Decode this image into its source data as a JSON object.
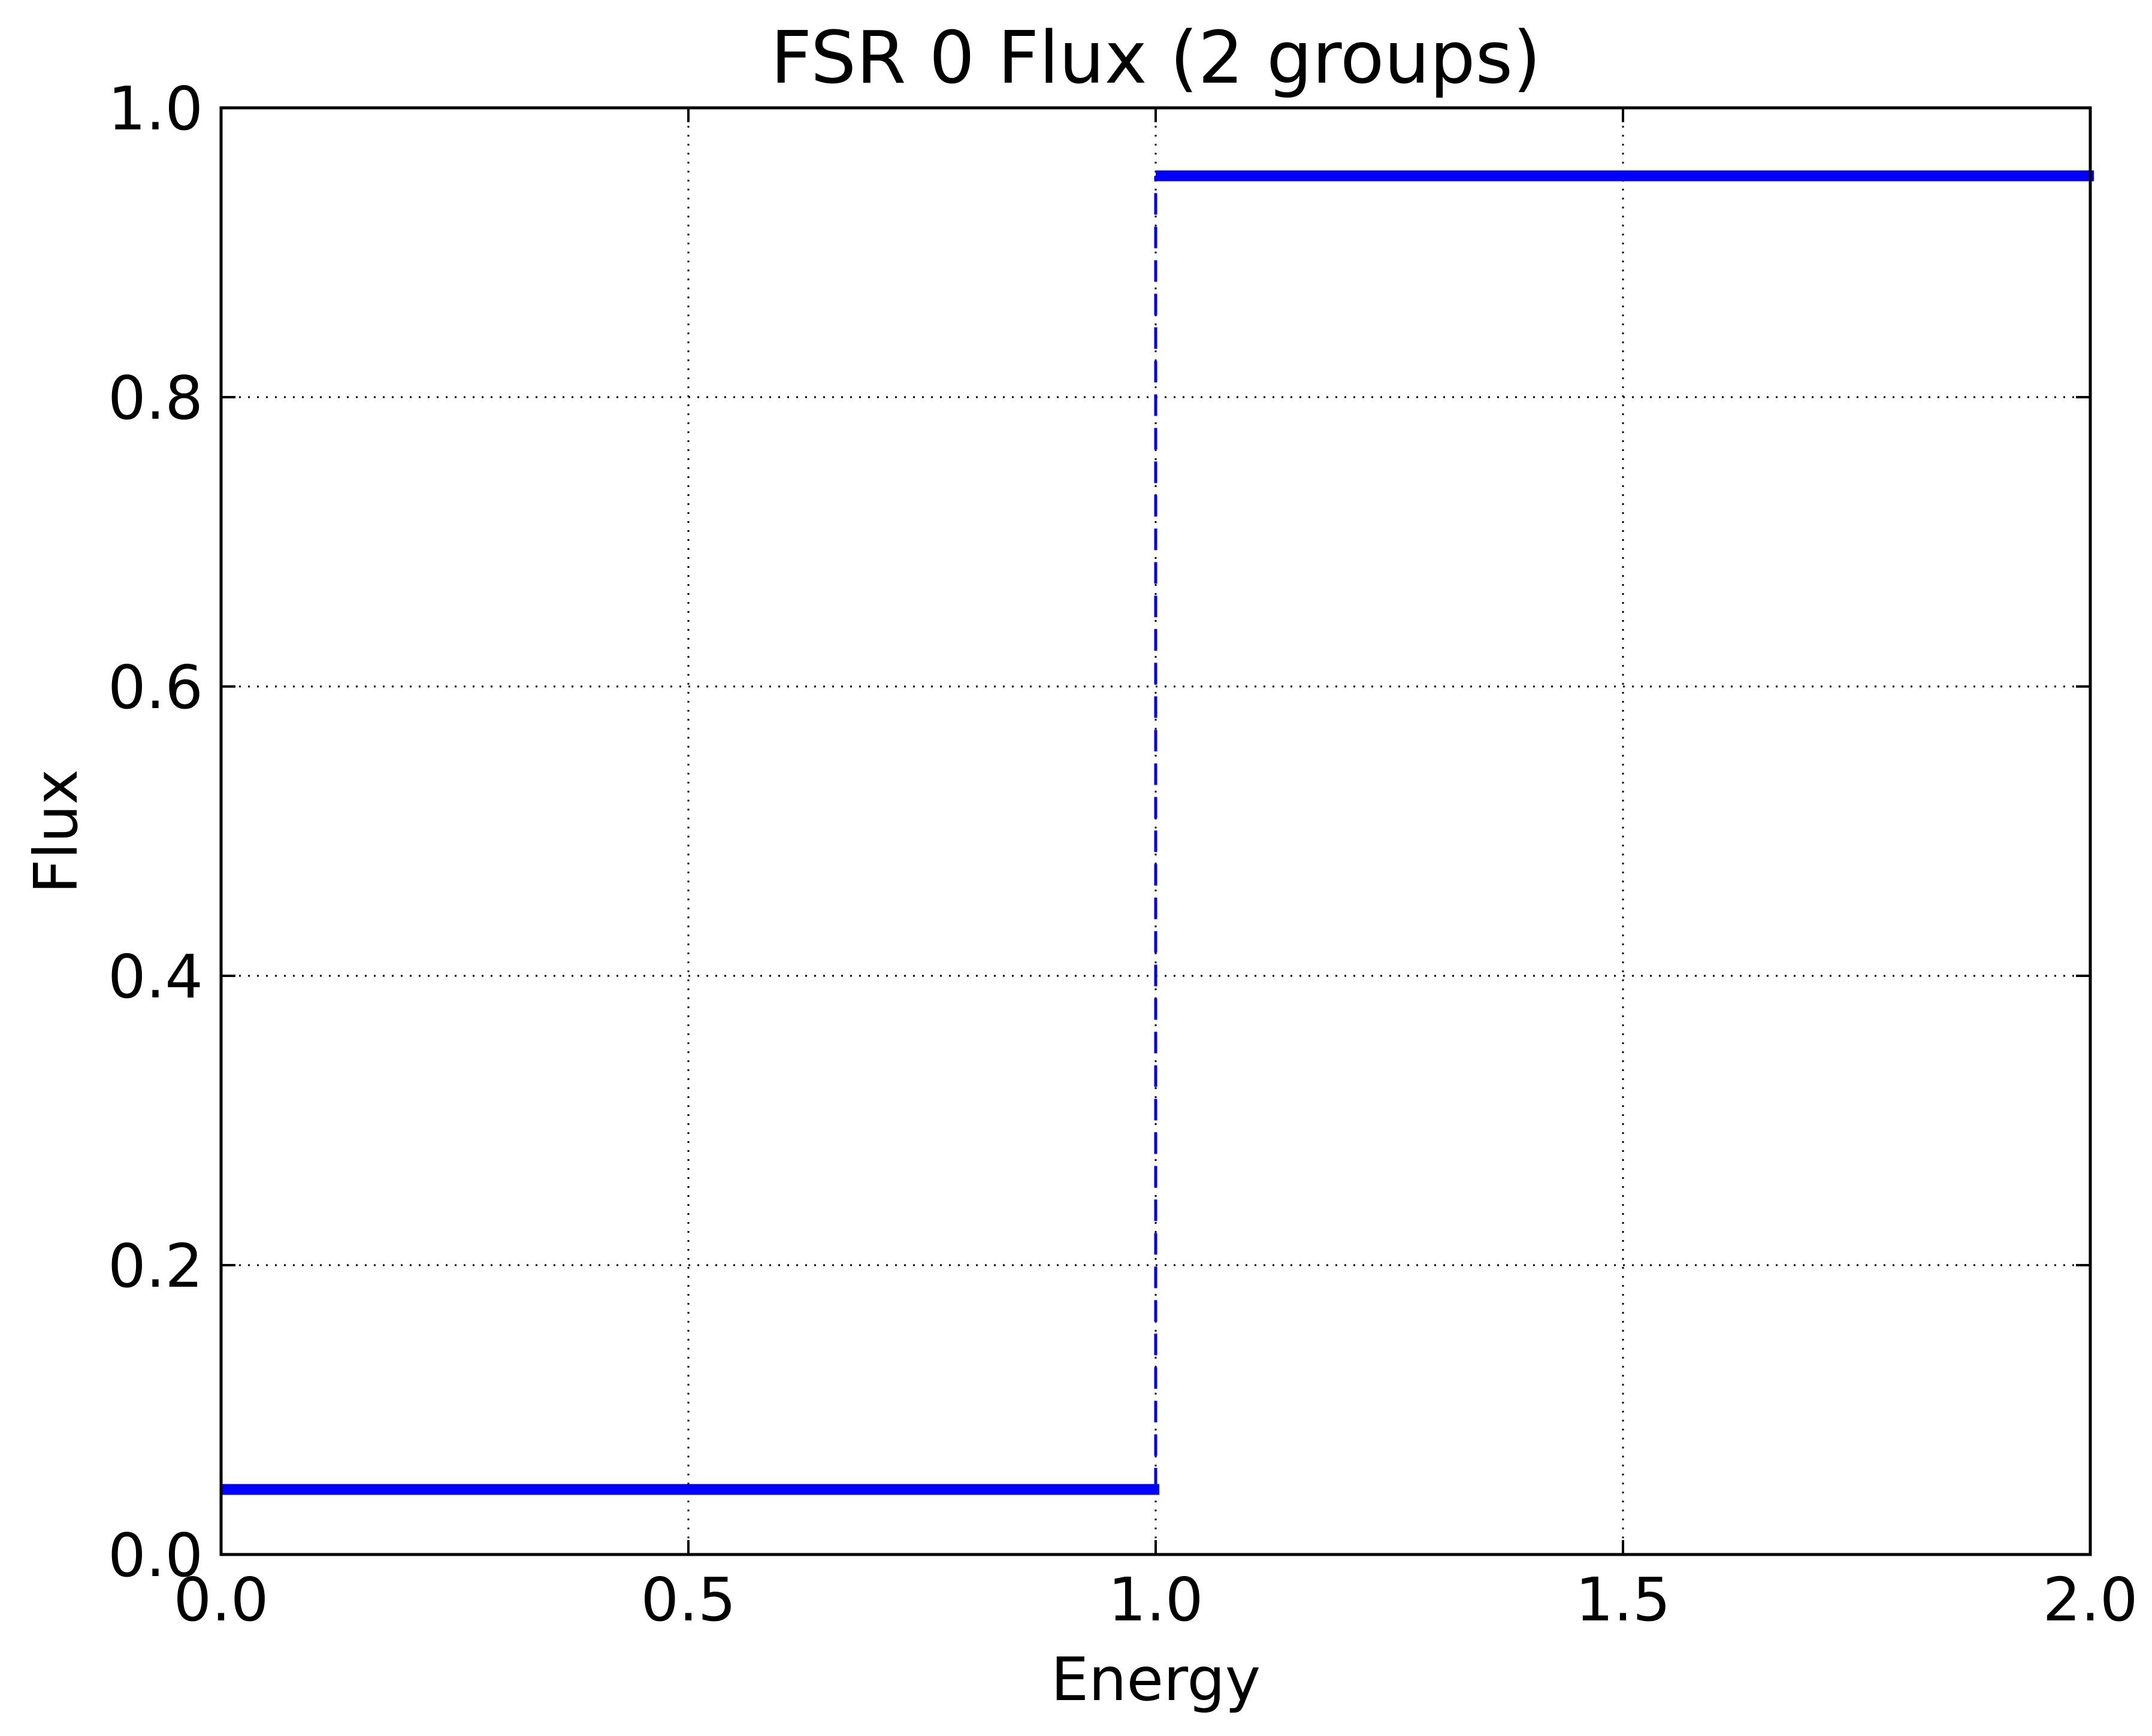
{
  "chart_data": {
    "type": "line",
    "title": "FSR 0 Flux (2 groups)",
    "xlabel": "Energy",
    "ylabel": "Flux",
    "xlim": [
      0.0,
      2.0
    ],
    "ylim": [
      0.0,
      1.0
    ],
    "xticks": [
      "0.0",
      "0.5",
      "1.0",
      "1.5",
      "2.0"
    ],
    "yticks": [
      "0.0",
      "0.2",
      "0.4",
      "0.6",
      "0.8",
      "1.0"
    ],
    "grid": true,
    "series": [
      {
        "style": "step",
        "color": "#0000ff",
        "segments": [
          {
            "x": [
              0.0,
              1.0
            ],
            "y": 0.045
          },
          {
            "x": [
              1.0,
              2.0
            ],
            "y": 0.953
          }
        ],
        "connector": {
          "x": 1.0,
          "y": [
            0.045,
            0.953
          ],
          "linestyle": "dashed"
        }
      }
    ]
  }
}
